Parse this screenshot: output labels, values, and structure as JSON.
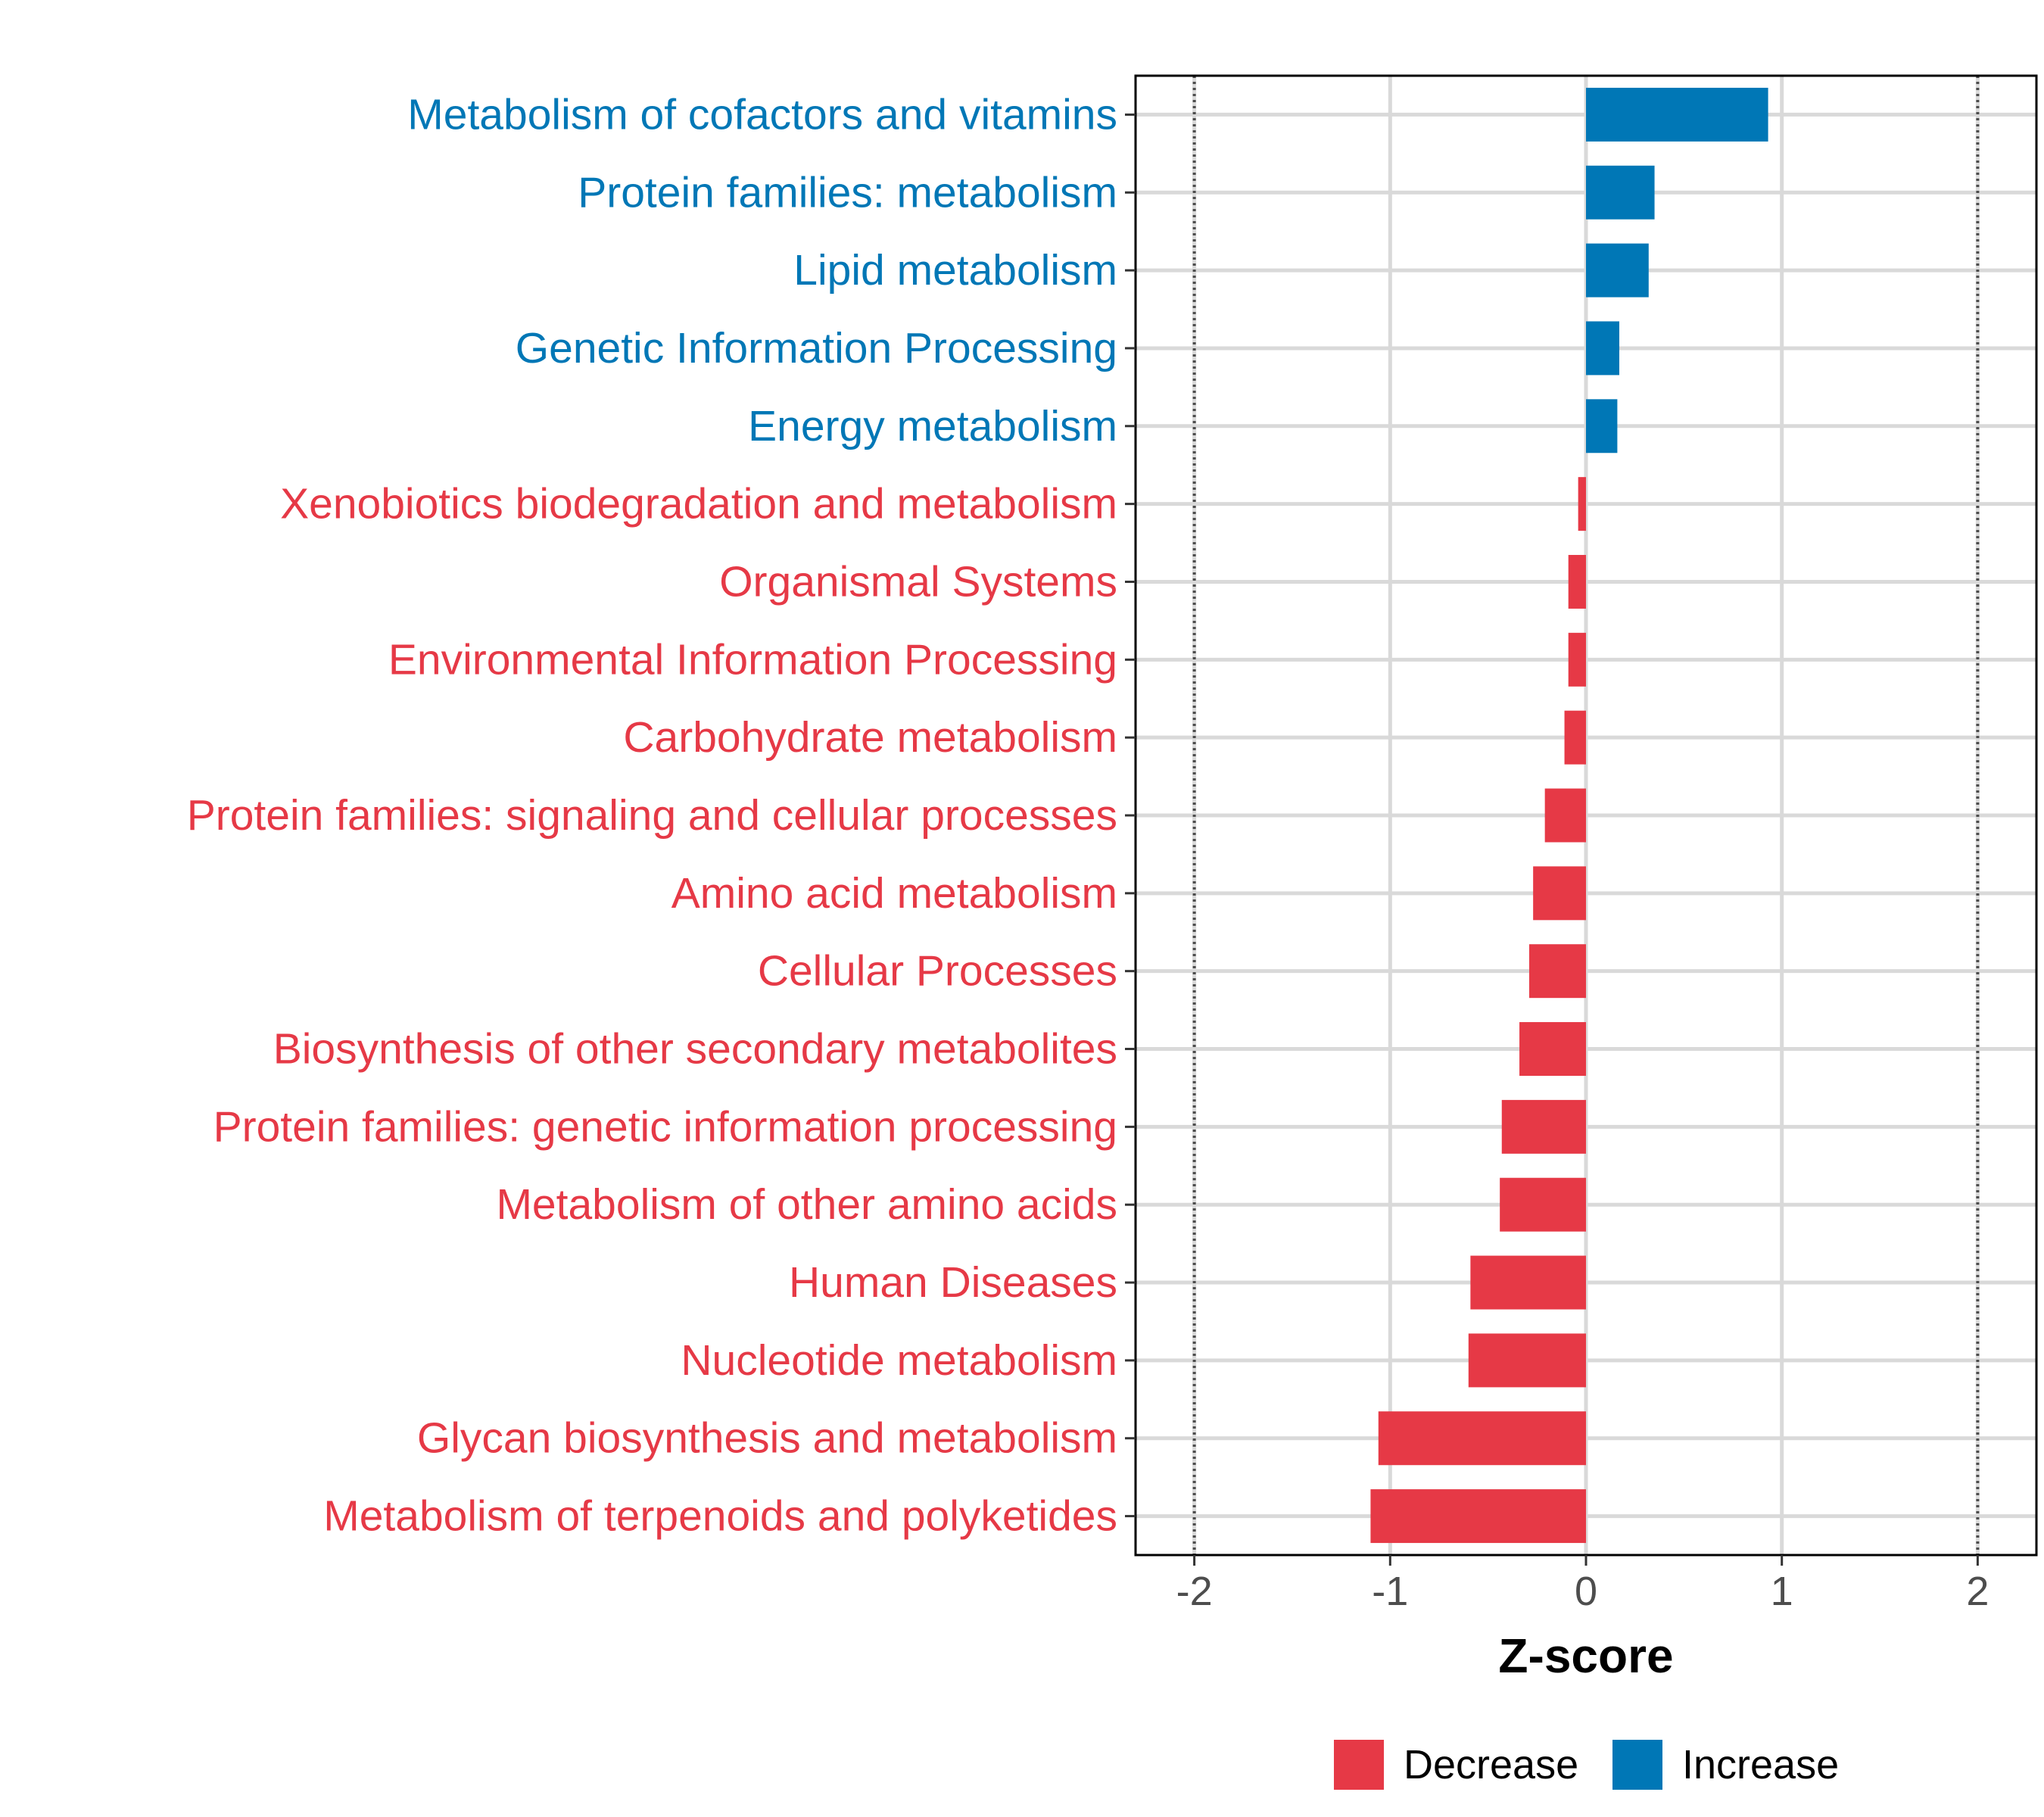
{
  "chart_data": {
    "type": "bar",
    "orientation": "horizontal",
    "title": "",
    "xlabel": "Z-score",
    "ylabel": "",
    "xlim": [
      -2.3,
      2.3
    ],
    "x_ticks": [
      -2,
      -1,
      0,
      1,
      2
    ],
    "x_tick_labels": [
      "-2",
      "-1",
      "0",
      "1",
      "2"
    ],
    "reference_lines": [
      -2,
      2
    ],
    "grid": true,
    "categories": [
      "Metabolism of cofactors and vitamins",
      "Protein families: metabolism",
      "Lipid metabolism",
      "Genetic Information Processing",
      "Energy metabolism",
      "Xenobiotics biodegradation and metabolism",
      "Organismal Systems",
      "Environmental Information Processing",
      "Carbohydrate metabolism",
      "Protein families: signaling and cellular processes",
      "Amino acid metabolism",
      "Cellular Processes",
      "Biosynthesis of other secondary metabolites",
      "Protein families: genetic information processing",
      "Metabolism of other amino acids",
      "Human Diseases",
      "Nucleotide metabolism",
      "Glycan biosynthesis and metabolism",
      "Metabolism of terpenoids and polyketides"
    ],
    "values": [
      0.93,
      0.35,
      0.32,
      0.17,
      0.16,
      -0.04,
      -0.09,
      -0.09,
      -0.11,
      -0.21,
      -0.27,
      -0.29,
      -0.34,
      -0.43,
      -0.44,
      -0.59,
      -0.6,
      -1.06,
      -1.1
    ],
    "groups": [
      "Increase",
      "Increase",
      "Increase",
      "Increase",
      "Increase",
      "Decrease",
      "Decrease",
      "Decrease",
      "Decrease",
      "Decrease",
      "Decrease",
      "Decrease",
      "Decrease",
      "Decrease",
      "Decrease",
      "Decrease",
      "Decrease",
      "Decrease",
      "Decrease"
    ],
    "legend": {
      "position": "bottom",
      "items": [
        {
          "label": "Decrease",
          "color": "#e63946"
        },
        {
          "label": "Increase",
          "color": "#0077b6"
        }
      ]
    },
    "colors": {
      "Decrease": "#e63946",
      "Increase": "#0077b6",
      "grid": "#d9d9d9",
      "axis": "#000000",
      "reference": "#4d4d4d"
    }
  }
}
